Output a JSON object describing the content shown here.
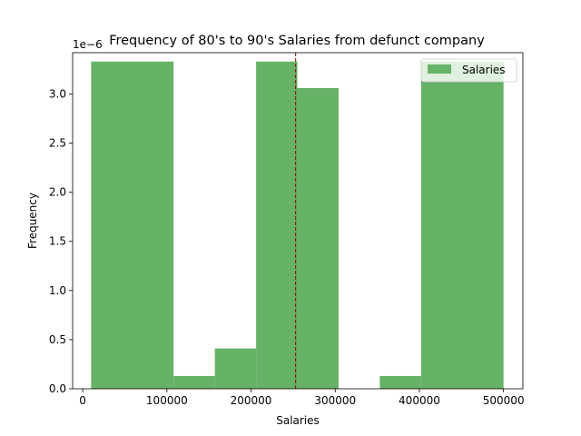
{
  "chart_data": {
    "type": "bar",
    "title": "Frequency of 80's to 90's Salaries from defunct company",
    "xlabel": "Salaries",
    "ylabel": "Frequency",
    "y_scale_label": "1e−6",
    "xlim": [
      -12000,
      523000
    ],
    "ylim": [
      0,
      3.42
    ],
    "x_ticks": [
      0,
      100000,
      200000,
      300000,
      400000,
      500000
    ],
    "x_tick_labels": [
      "0",
      "100000",
      "200000",
      "300000",
      "400000",
      "500000"
    ],
    "y_ticks": [
      0.0,
      0.5,
      1.0,
      1.5,
      2.0,
      2.5,
      3.0
    ],
    "y_tick_labels": [
      "0.0",
      "0.5",
      "1.0",
      "1.5",
      "2.0",
      "2.5",
      "3.0"
    ],
    "bins": [
      {
        "x0": 10000,
        "x1": 108000,
        "value": 3.33
      },
      {
        "x0": 108000,
        "x1": 157000,
        "value": 0.13
      },
      {
        "x0": 157000,
        "x1": 206000,
        "value": 0.41
      },
      {
        "x0": 206000,
        "x1": 255000,
        "value": 3.33
      },
      {
        "x0": 255000,
        "x1": 304000,
        "value": 3.06
      },
      {
        "x0": 304000,
        "x1": 353000,
        "value": 0.0
      },
      {
        "x0": 353000,
        "x1": 402000,
        "value": 0.13
      },
      {
        "x0": 402000,
        "x1": 500000,
        "value": 3.33
      }
    ],
    "mean_line": 253000,
    "legend": {
      "label": "Salaries",
      "placement": "upper-right"
    },
    "grid": false,
    "colors": {
      "bar": "#66b266",
      "mean_line": "#8b0000"
    }
  }
}
